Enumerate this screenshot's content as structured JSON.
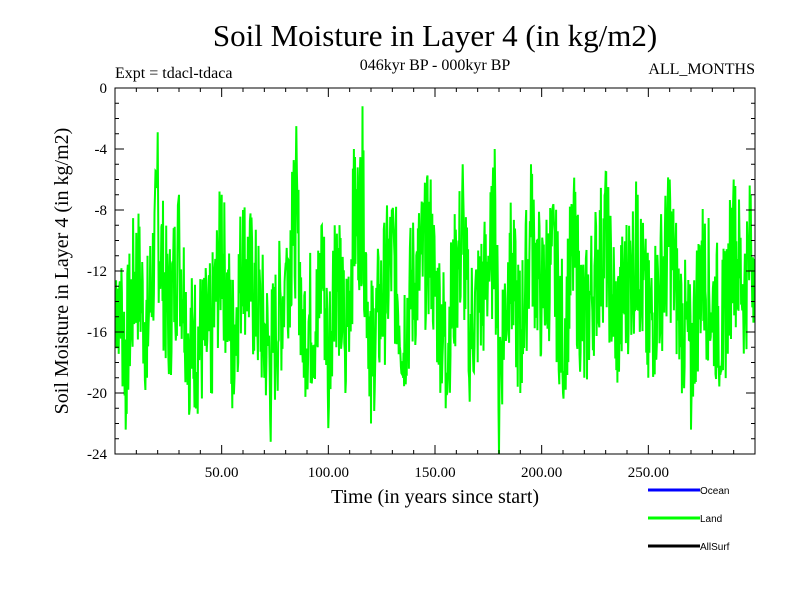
{
  "chart_data": {
    "type": "line",
    "title": "Soil Moisture in Layer 4 (in kg/m2)",
    "subtitle": "046kyr BP - 000kyr BP",
    "experiment": "Expt = tdacl-tdaca",
    "period": "ALL_MONTHS",
    "xlabel": "Time (in years since start)",
    "ylabel": "Soil Moisture in Layer 4 (in kg/m2)",
    "xlim": [
      0,
      300
    ],
    "ylim": [
      -24,
      0
    ],
    "x_ticks": [
      50,
      100,
      150,
      200,
      250
    ],
    "x_tick_labels": [
      "50.00",
      "100.00",
      "150.00",
      "200.00",
      "250.00"
    ],
    "y_ticks": [
      0,
      -4,
      -8,
      -12,
      -16,
      -20,
      -24
    ],
    "y_tick_labels": [
      "0",
      "-4",
      "-8",
      "-12",
      "-16",
      "-20",
      "-24"
    ],
    "grid": false,
    "legend_position": "bottom-right",
    "series": [
      {
        "name": "Ocean",
        "color": "#0000ff",
        "values": []
      },
      {
        "name": "Land",
        "color": "#00ff00",
        "samples_per_year": 4,
        "x_start": 0.25,
        "x_end": 299.75,
        "mean": -13.4,
        "min": -24.0,
        "max": -1.2,
        "anchors": [
          [
            2,
            -13.0
          ],
          [
            5,
            -22.4
          ],
          [
            10,
            -9.5
          ],
          [
            15,
            -19.0
          ],
          [
            20,
            -2.9
          ],
          [
            25,
            -17.5
          ],
          [
            30,
            -7.0
          ],
          [
            35,
            -21.0
          ],
          [
            45,
            -20.0
          ],
          [
            50,
            -7.0
          ],
          [
            55,
            -21.0
          ],
          [
            60,
            -8.0
          ],
          [
            70,
            -19.0
          ],
          [
            73,
            -23.2
          ],
          [
            80,
            -11.5
          ],
          [
            83,
            -5.5
          ],
          [
            85,
            -2.5
          ],
          [
            88,
            -18.0
          ],
          [
            95,
            -17.0
          ],
          [
            97,
            -9.0
          ],
          [
            100,
            -22.3
          ],
          [
            103,
            -9.0
          ],
          [
            108,
            -20.0
          ],
          [
            112,
            -4.0
          ],
          [
            116,
            -1.2
          ],
          [
            120,
            -22.0
          ],
          [
            125,
            -15.0
          ],
          [
            130,
            -8.0
          ],
          [
            135,
            -19.0
          ],
          [
            140,
            -12.0
          ],
          [
            148,
            -6.0
          ],
          [
            150,
            -13.0
          ],
          [
            155,
            -21.0
          ],
          [
            160,
            -11.0
          ],
          [
            163,
            -5.0
          ],
          [
            166,
            -19.0
          ],
          [
            175,
            -11.0
          ],
          [
            178,
            -4.0
          ],
          [
            180,
            -24.0
          ],
          [
            185,
            -9.5
          ],
          [
            190,
            -20.0
          ],
          [
            195,
            -5.0
          ],
          [
            200,
            -14.0
          ],
          [
            205,
            -8.0
          ],
          [
            210,
            -20.0
          ],
          [
            215,
            -7.0
          ],
          [
            220,
            -19.0
          ],
          [
            225,
            -11.0
          ],
          [
            230,
            -5.5
          ],
          [
            235,
            -18.5
          ],
          [
            240,
            -12.0
          ],
          [
            245,
            -7.0
          ],
          [
            250,
            -19.0
          ],
          [
            255,
            -13.0
          ],
          [
            260,
            -6.0
          ],
          [
            265,
            -17.0
          ],
          [
            270,
            -22.4
          ],
          [
            275,
            -10.0
          ],
          [
            280,
            -15.0
          ],
          [
            285,
            -18.5
          ],
          [
            290,
            -6.0
          ],
          [
            295,
            -13.0
          ],
          [
            298,
            -7.0
          ]
        ]
      },
      {
        "name": "AllSurf",
        "color": "#000000",
        "values": []
      }
    ]
  }
}
